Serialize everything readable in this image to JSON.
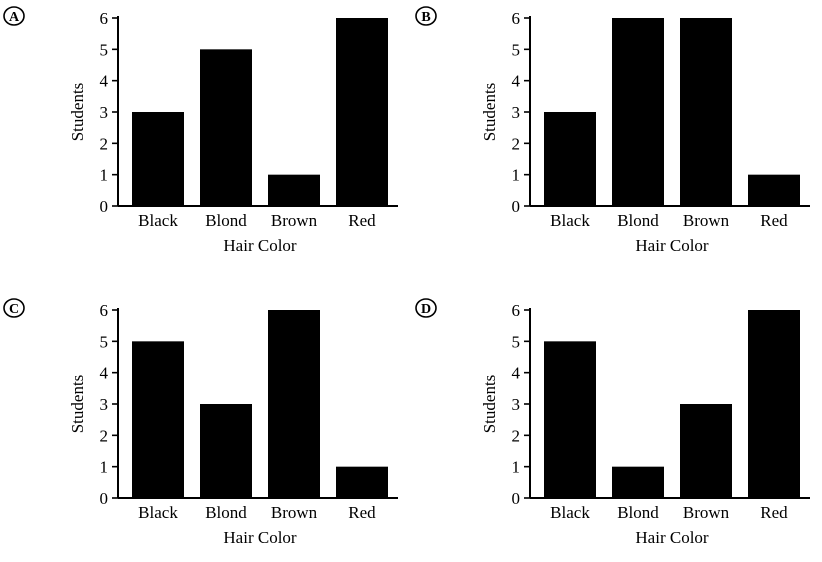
{
  "chart_data": [
    {
      "type": "bar",
      "choice": "A",
      "categories": [
        "Black",
        "Blond",
        "Brown",
        "Red"
      ],
      "values": [
        3,
        5,
        1,
        6
      ],
      "xlabel": "Hair Color",
      "ylabel": "Students",
      "ylim": [
        0,
        6
      ],
      "yticks": [
        "0",
        "1",
        "2",
        "3",
        "4",
        "5",
        "6"
      ],
      "grid": false,
      "bar_color": "#000000"
    },
    {
      "type": "bar",
      "choice": "B",
      "categories": [
        "Black",
        "Blond",
        "Brown",
        "Red"
      ],
      "values": [
        3,
        6,
        6,
        1
      ],
      "xlabel": "Hair Color",
      "ylabel": "Students",
      "ylim": [
        0,
        6
      ],
      "yticks": [
        "0",
        "1",
        "2",
        "3",
        "4",
        "5",
        "6"
      ],
      "grid": false,
      "bar_color": "#000000"
    },
    {
      "type": "bar",
      "choice": "C",
      "categories": [
        "Black",
        "Blond",
        "Brown",
        "Red"
      ],
      "values": [
        5,
        3,
        6,
        1
      ],
      "xlabel": "Hair Color",
      "ylabel": "Students",
      "ylim": [
        0,
        6
      ],
      "yticks": [
        "0",
        "1",
        "2",
        "3",
        "4",
        "5",
        "6"
      ],
      "grid": false,
      "bar_color": "#000000"
    },
    {
      "type": "bar",
      "choice": "D",
      "categories": [
        "Black",
        "Blond",
        "Brown",
        "Red"
      ],
      "values": [
        5,
        1,
        3,
        6
      ],
      "xlabel": "Hair Color",
      "ylabel": "Students",
      "ylim": [
        0,
        6
      ],
      "yticks": [
        "0",
        "1",
        "2",
        "3",
        "4",
        "5",
        "6"
      ],
      "grid": false,
      "bar_color": "#000000"
    }
  ]
}
